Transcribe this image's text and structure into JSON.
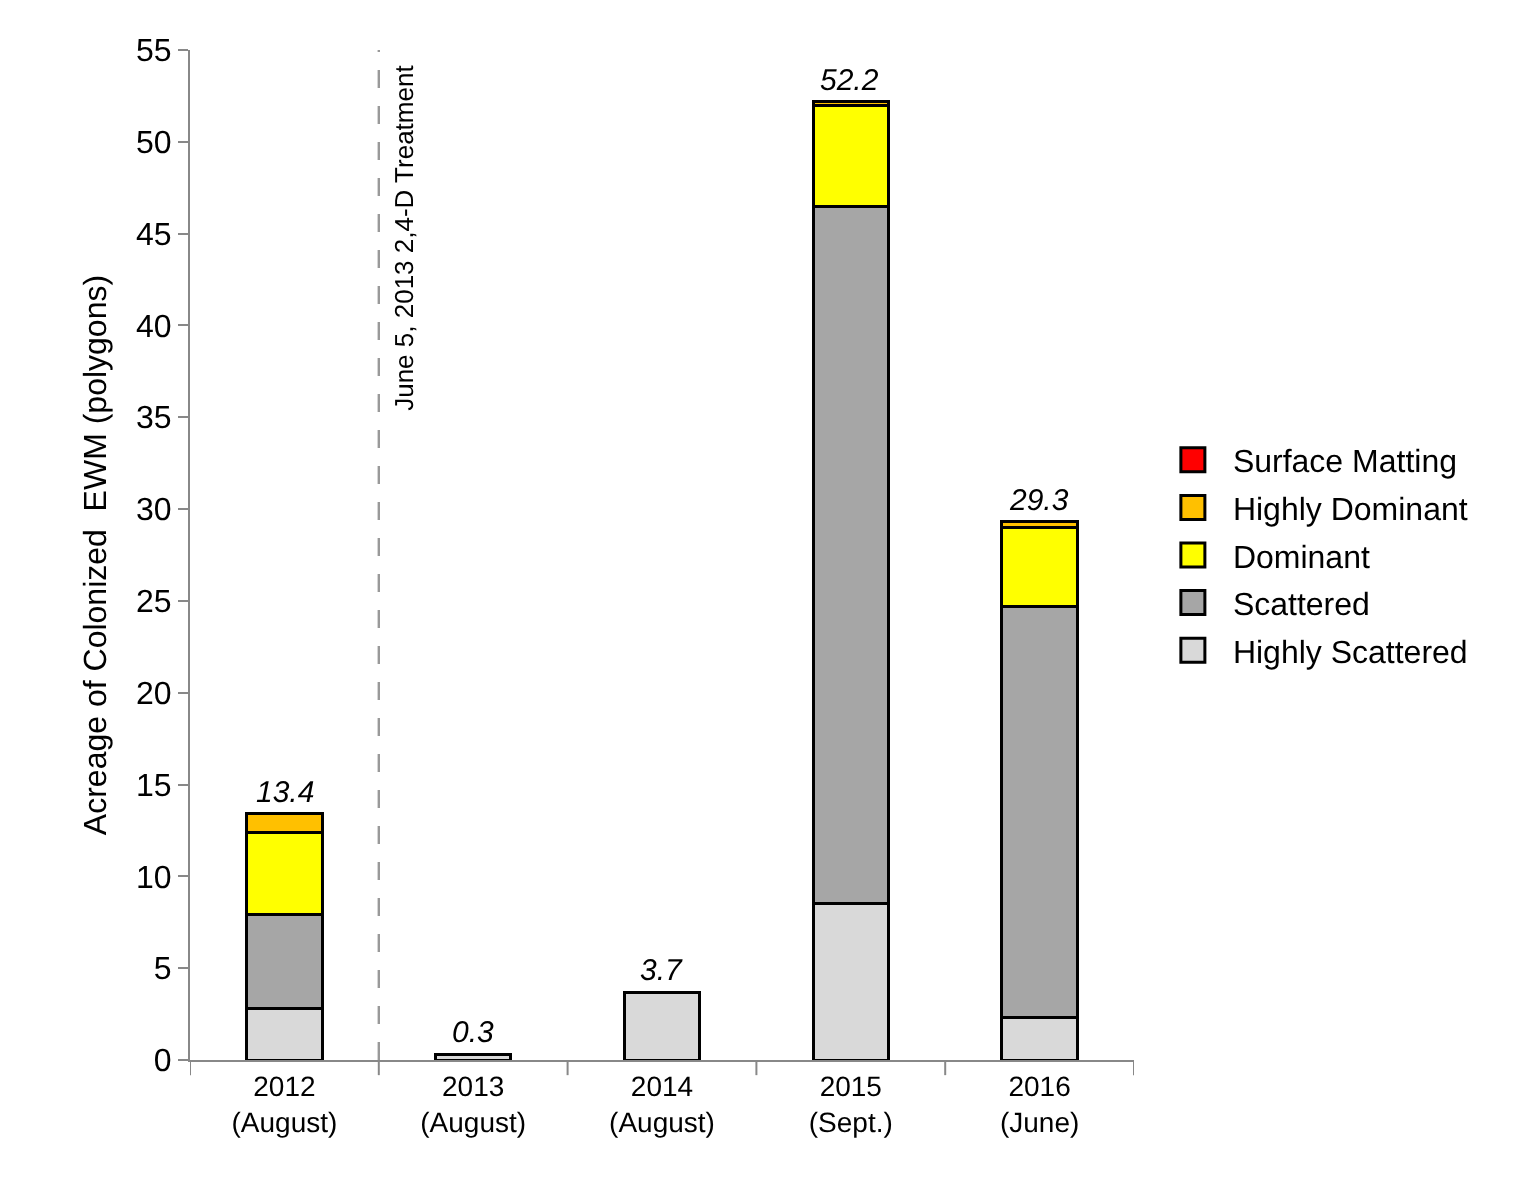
{
  "chart_data": {
    "type": "bar",
    "stacked": true,
    "categories": [
      "2012\n(August)",
      "2013\n(August)",
      "2014\n(August)",
      "2015\n(Sept.)",
      "2016\n(June)"
    ],
    "ylabel": "Acreage of Colonized  EWM (polygons)",
    "ylim": [
      0,
      55
    ],
    "yticks": [
      0,
      5,
      10,
      15,
      20,
      25,
      30,
      35,
      40,
      45,
      50,
      55
    ],
    "grid": false,
    "legend": "right",
    "series": [
      {
        "name": "Highly Scattered",
        "color": "#d9d9d9",
        "values": [
          2.8,
          0.3,
          3.7,
          8.5,
          2.3
        ]
      },
      {
        "name": "Scattered",
        "color": "#a6a6a6",
        "values": [
          5.1,
          null,
          null,
          38,
          22.4
        ]
      },
      {
        "name": "Dominant",
        "color": "#ffff00",
        "values": [
          4.5,
          null,
          null,
          5.5,
          4.3
        ]
      },
      {
        "name": "Highly Dominant",
        "color": "#ffc000",
        "values": [
          1.0,
          null,
          null,
          0.2,
          0.3
        ]
      },
      {
        "name": "Surface Matting",
        "color": "#ff0000",
        "values": [
          null,
          null,
          null,
          null,
          null
        ]
      }
    ],
    "totals": [
      "13.4",
      "0.3",
      "3.7",
      "52.2",
      "29.3"
    ],
    "annotations": [
      "June 5, 2013 2,4-D Treatment"
    ]
  }
}
